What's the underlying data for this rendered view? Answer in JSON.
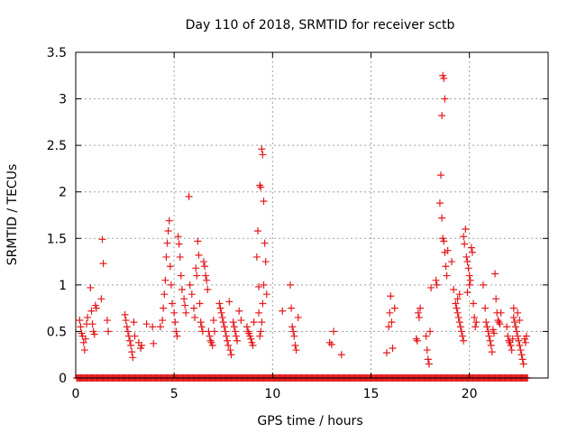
{
  "chart_data": {
    "type": "scatter",
    "title": "Day 110 of 2018, SRMTID for receiver sctb",
    "xlabel": "GPS time / hours",
    "ylabel": "SRMTID / TECUs",
    "xlim": [
      0,
      24
    ],
    "ylim": [
      0,
      3.5
    ],
    "xticks": [
      0,
      5,
      10,
      15,
      20
    ],
    "xtick_labels": [
      "0",
      "5",
      "10",
      "15",
      "20"
    ],
    "yticks": [
      0,
      0.5,
      1,
      1.5,
      2,
      2.5,
      3,
      3.5
    ],
    "ytick_labels": [
      "0",
      "0.5",
      "1",
      "1.5",
      "2",
      "2.5",
      "3",
      "3.5"
    ],
    "grid": true,
    "marker": "+",
    "color": "#e41a1c",
    "series": [
      {
        "name": "SRMTID",
        "points": [
          [
            0.2,
            0.62
          ],
          [
            0.25,
            0.55
          ],
          [
            0.3,
            0.48
          ],
          [
            0.35,
            0.45
          ],
          [
            0.4,
            0.38
          ],
          [
            0.45,
            0.3
          ],
          [
            0.5,
            0.42
          ],
          [
            0.55,
            0.58
          ],
          [
            0.6,
            0.65
          ],
          [
            0.75,
            0.97
          ],
          [
            0.8,
            0.72
          ],
          [
            0.85,
            0.58
          ],
          [
            0.9,
            0.5
          ],
          [
            0.95,
            0.47
          ],
          [
            1.0,
            0.78
          ],
          [
            1.05,
            0.75
          ],
          [
            1.35,
            1.49
          ],
          [
            1.4,
            1.23
          ],
          [
            1.3,
            0.85
          ],
          [
            1.6,
            0.62
          ],
          [
            1.65,
            0.5
          ],
          [
            2.5,
            0.68
          ],
          [
            2.55,
            0.62
          ],
          [
            2.6,
            0.55
          ],
          [
            2.65,
            0.5
          ],
          [
            2.7,
            0.45
          ],
          [
            2.75,
            0.4
          ],
          [
            2.8,
            0.35
          ],
          [
            2.85,
            0.28
          ],
          [
            2.9,
            0.22
          ],
          [
            2.95,
            0.6
          ],
          [
            3.0,
            0.45
          ],
          [
            3.2,
            0.38
          ],
          [
            3.3,
            0.32
          ],
          [
            3.35,
            0.35
          ],
          [
            3.6,
            0.58
          ],
          [
            3.9,
            0.55
          ],
          [
            3.95,
            0.37
          ],
          [
            4.3,
            0.55
          ],
          [
            4.4,
            0.62
          ],
          [
            4.45,
            0.75
          ],
          [
            4.5,
            0.9
          ],
          [
            4.55,
            1.05
          ],
          [
            4.6,
            1.3
          ],
          [
            4.65,
            1.45
          ],
          [
            4.7,
            1.58
          ],
          [
            4.75,
            1.69
          ],
          [
            4.8,
            1.2
          ],
          [
            4.85,
            1.0
          ],
          [
            4.9,
            0.8
          ],
          [
            5.0,
            0.7
          ],
          [
            5.05,
            0.6
          ],
          [
            5.1,
            0.5
          ],
          [
            5.15,
            0.45
          ],
          [
            5.2,
            1.52
          ],
          [
            5.25,
            1.44
          ],
          [
            5.3,
            1.3
          ],
          [
            5.35,
            1.1
          ],
          [
            5.4,
            0.95
          ],
          [
            5.5,
            0.85
          ],
          [
            5.55,
            0.78
          ],
          [
            5.6,
            0.7
          ],
          [
            5.75,
            1.95
          ],
          [
            5.8,
            1.0
          ],
          [
            5.9,
            0.9
          ],
          [
            6.0,
            0.75
          ],
          [
            6.05,
            0.65
          ],
          [
            6.1,
            1.18
          ],
          [
            6.15,
            1.1
          ],
          [
            6.2,
            1.47
          ],
          [
            6.25,
            1.32
          ],
          [
            6.3,
            0.8
          ],
          [
            6.35,
            0.6
          ],
          [
            6.4,
            0.55
          ],
          [
            6.45,
            0.5
          ],
          [
            6.5,
            1.25
          ],
          [
            6.55,
            1.2
          ],
          [
            6.6,
            1.1
          ],
          [
            6.65,
            1.05
          ],
          [
            6.7,
            0.95
          ],
          [
            6.75,
            0.5
          ],
          [
            6.8,
            0.45
          ],
          [
            6.85,
            0.4
          ],
          [
            6.9,
            0.38
          ],
          [
            6.95,
            0.35
          ],
          [
            7.0,
            0.62
          ],
          [
            7.05,
            0.5
          ],
          [
            7.3,
            0.8
          ],
          [
            7.35,
            0.75
          ],
          [
            7.4,
            0.7
          ],
          [
            7.45,
            0.65
          ],
          [
            7.5,
            0.6
          ],
          [
            7.55,
            0.55
          ],
          [
            7.6,
            0.5
          ],
          [
            7.65,
            0.45
          ],
          [
            7.7,
            0.4
          ],
          [
            7.75,
            0.35
          ],
          [
            7.8,
            0.82
          ],
          [
            7.85,
            0.3
          ],
          [
            7.9,
            0.25
          ],
          [
            8.0,
            0.6
          ],
          [
            8.05,
            0.55
          ],
          [
            8.1,
            0.5
          ],
          [
            8.15,
            0.45
          ],
          [
            8.2,
            0.4
          ],
          [
            8.3,
            0.72
          ],
          [
            8.4,
            0.62
          ],
          [
            8.7,
            0.55
          ],
          [
            8.75,
            0.5
          ],
          [
            8.8,
            0.48
          ],
          [
            8.85,
            0.45
          ],
          [
            8.9,
            0.42
          ],
          [
            8.95,
            0.38
          ],
          [
            9.0,
            0.35
          ],
          [
            9.05,
            0.6
          ],
          [
            9.2,
            1.3
          ],
          [
            9.25,
            1.58
          ],
          [
            9.3,
            0.98
          ],
          [
            9.35,
            2.07
          ],
          [
            9.4,
            2.05
          ],
          [
            9.45,
            2.46
          ],
          [
            9.5,
            2.4
          ],
          [
            9.55,
            1.9
          ],
          [
            9.6,
            1.45
          ],
          [
            9.55,
            1.0
          ],
          [
            9.5,
            0.8
          ],
          [
            9.45,
            0.6
          ],
          [
            9.4,
            0.5
          ],
          [
            9.35,
            0.45
          ],
          [
            9.3,
            0.7
          ],
          [
            9.65,
            1.25
          ],
          [
            9.7,
            0.9
          ],
          [
            10.5,
            0.72
          ],
          [
            10.9,
            1.0
          ],
          [
            10.95,
            0.75
          ],
          [
            11.0,
            0.55
          ],
          [
            11.05,
            0.5
          ],
          [
            11.1,
            0.45
          ],
          [
            11.15,
            0.35
          ],
          [
            11.2,
            0.3
          ],
          [
            11.3,
            0.65
          ],
          [
            12.9,
            0.38
          ],
          [
            13.0,
            0.36
          ],
          [
            13.1,
            0.5
          ],
          [
            13.5,
            0.25
          ],
          [
            15.8,
            0.27
          ],
          [
            15.9,
            0.55
          ],
          [
            15.95,
            0.7
          ],
          [
            16.0,
            0.88
          ],
          [
            16.05,
            0.6
          ],
          [
            16.1,
            0.32
          ],
          [
            16.2,
            0.75
          ],
          [
            17.3,
            0.42
          ],
          [
            17.35,
            0.4
          ],
          [
            17.4,
            0.7
          ],
          [
            17.45,
            0.65
          ],
          [
            17.5,
            0.75
          ],
          [
            17.8,
            0.45
          ],
          [
            17.85,
            0.3
          ],
          [
            17.9,
            0.2
          ],
          [
            17.95,
            0.15
          ],
          [
            18.0,
            0.5
          ],
          [
            18.05,
            0.97
          ],
          [
            18.3,
            1.05
          ],
          [
            18.35,
            1.0
          ],
          [
            18.5,
            1.88
          ],
          [
            18.55,
            2.18
          ],
          [
            18.6,
            2.82
          ],
          [
            18.65,
            3.25
          ],
          [
            18.7,
            3.22
          ],
          [
            18.75,
            3.0
          ],
          [
            18.6,
            1.72
          ],
          [
            18.65,
            1.5
          ],
          [
            18.7,
            1.47
          ],
          [
            18.75,
            1.35
          ],
          [
            18.8,
            1.2
          ],
          [
            18.85,
            1.1
          ],
          [
            18.9,
            1.37
          ],
          [
            19.1,
            1.25
          ],
          [
            19.2,
            0.95
          ],
          [
            19.3,
            0.8
          ],
          [
            19.35,
            0.75
          ],
          [
            19.4,
            0.7
          ],
          [
            19.45,
            0.65
          ],
          [
            19.5,
            0.6
          ],
          [
            19.55,
            0.55
          ],
          [
            19.6,
            0.5
          ],
          [
            19.65,
            0.45
          ],
          [
            19.7,
            0.4
          ],
          [
            19.4,
            0.85
          ],
          [
            19.5,
            0.9
          ],
          [
            19.7,
            1.52
          ],
          [
            19.75,
            1.44
          ],
          [
            19.8,
            1.6
          ],
          [
            19.85,
            1.3
          ],
          [
            19.9,
            1.25
          ],
          [
            19.95,
            1.18
          ],
          [
            20.0,
            1.1
          ],
          [
            20.05,
            1.05
          ],
          [
            20.1,
            1.4
          ],
          [
            20.15,
            1.35
          ],
          [
            20.2,
            0.8
          ],
          [
            20.25,
            0.65
          ],
          [
            20.3,
            0.55
          ],
          [
            20.35,
            0.6
          ],
          [
            20.0,
            1.0
          ],
          [
            19.9,
            0.92
          ],
          [
            20.7,
            1.0
          ],
          [
            20.8,
            0.75
          ],
          [
            20.85,
            0.6
          ],
          [
            20.9,
            0.55
          ],
          [
            20.95,
            0.5
          ],
          [
            21.0,
            0.45
          ],
          [
            21.05,
            0.4
          ],
          [
            21.1,
            0.35
          ],
          [
            21.15,
            0.28
          ],
          [
            21.2,
            0.52
          ],
          [
            21.25,
            0.48
          ],
          [
            21.3,
            1.12
          ],
          [
            21.35,
            0.85
          ],
          [
            21.4,
            0.7
          ],
          [
            21.45,
            0.62
          ],
          [
            21.5,
            0.6
          ],
          [
            21.55,
            0.58
          ],
          [
            21.6,
            0.7
          ],
          [
            21.9,
            0.55
          ],
          [
            21.95,
            0.45
          ],
          [
            22.0,
            0.4
          ],
          [
            22.05,
            0.38
          ],
          [
            22.1,
            0.35
          ],
          [
            22.15,
            0.3
          ],
          [
            22.2,
            0.42
          ],
          [
            22.25,
            0.65
          ],
          [
            22.3,
            0.6
          ],
          [
            22.35,
            0.55
          ],
          [
            22.4,
            0.5
          ],
          [
            22.45,
            0.45
          ],
          [
            22.5,
            0.4
          ],
          [
            22.55,
            0.35
          ],
          [
            22.6,
            0.3
          ],
          [
            22.65,
            0.25
          ],
          [
            22.7,
            0.2
          ],
          [
            22.75,
            0.15
          ],
          [
            22.45,
            0.7
          ],
          [
            22.55,
            0.62
          ],
          [
            22.25,
            0.75
          ],
          [
            22.8,
            0.42
          ],
          [
            22.85,
            0.38
          ],
          [
            22.9,
            0.45
          ]
        ],
        "baseline": {
          "y": 0,
          "x_start": 0.05,
          "x_end": 22.95,
          "step": 0.05
        }
      }
    ]
  }
}
